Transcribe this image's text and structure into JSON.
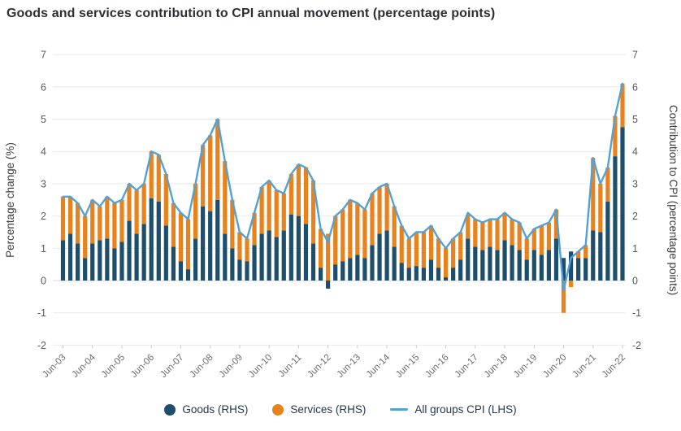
{
  "title": "Goods and services contribution to CPI annual movement (percentage points)",
  "legend": {
    "goods_label": "Goods (RHS)",
    "services_label": "Services (RHS)",
    "cpi_label": "All groups CPI (LHS)"
  },
  "chart_data": {
    "type": "bar",
    "subtype": "stacked-bars-with-line-overlay",
    "title": "Goods and services contribution to CPI annual movement (percentage points)",
    "categories": [
      "Jun-03",
      "Sep-03",
      "Dec-03",
      "Mar-04",
      "Jun-04",
      "Sep-04",
      "Dec-04",
      "Mar-05",
      "Jun-05",
      "Sep-05",
      "Dec-05",
      "Mar-06",
      "Jun-06",
      "Sep-06",
      "Dec-06",
      "Mar-07",
      "Jun-07",
      "Sep-07",
      "Dec-07",
      "Mar-08",
      "Jun-08",
      "Sep-08",
      "Dec-08",
      "Mar-09",
      "Jun-09",
      "Sep-09",
      "Dec-09",
      "Mar-10",
      "Jun-10",
      "Sep-10",
      "Dec-10",
      "Mar-11",
      "Jun-11",
      "Sep-11",
      "Dec-11",
      "Mar-12",
      "Jun-12",
      "Sep-12",
      "Dec-12",
      "Mar-13",
      "Jun-13",
      "Sep-13",
      "Dec-13",
      "Mar-14",
      "Jun-14",
      "Sep-14",
      "Dec-14",
      "Mar-15",
      "Jun-15",
      "Sep-15",
      "Dec-15",
      "Mar-16",
      "Jun-16",
      "Sep-16",
      "Dec-16",
      "Mar-17",
      "Jun-17",
      "Sep-17",
      "Dec-17",
      "Mar-18",
      "Jun-18",
      "Sep-18",
      "Dec-18",
      "Mar-19",
      "Jun-19",
      "Sep-19",
      "Dec-19",
      "Mar-20",
      "Jun-20",
      "Sep-20",
      "Dec-20",
      "Mar-21",
      "Jun-21",
      "Sep-21",
      "Dec-21",
      "Mar-22",
      "Jun-22"
    ],
    "x_tick_labels": [
      "Jun-03",
      "Jun-04",
      "Jun-05",
      "Jun-06",
      "Jun-07",
      "Jun-08",
      "Jun-09",
      "Jun-10",
      "Jun-11",
      "Jun-12",
      "Jun-13",
      "Jun-14",
      "Jun-15",
      "Jun-16",
      "Jun-17",
      "Jun-18",
      "Jun-19",
      "Jun-20",
      "Jun-21",
      "Jun-22"
    ],
    "series": [
      {
        "name": "Goods (RHS)",
        "type": "bar",
        "stack": true,
        "color": "#1d4e6b",
        "values": [
          1.25,
          1.45,
          1.15,
          0.7,
          1.15,
          1.25,
          1.3,
          1.0,
          1.2,
          1.85,
          1.45,
          1.75,
          2.55,
          2.45,
          1.7,
          1.05,
          0.6,
          0.35,
          1.3,
          2.3,
          2.15,
          2.5,
          1.45,
          1.0,
          0.65,
          0.6,
          1.1,
          1.45,
          1.55,
          1.35,
          1.55,
          2.05,
          2.0,
          1.75,
          1.15,
          0.4,
          -0.25,
          0.5,
          0.6,
          0.7,
          0.8,
          0.7,
          1.1,
          1.45,
          1.55,
          1.05,
          0.55,
          0.4,
          0.45,
          0.4,
          0.65,
          0.4,
          0.1,
          0.4,
          0.65,
          1.3,
          1.05,
          0.95,
          1.05,
          0.95,
          1.25,
          1.1,
          0.95,
          0.65,
          0.95,
          0.8,
          0.95,
          1.3,
          0.7,
          0.9,
          0.7,
          0.7,
          1.55,
          1.5,
          2.45,
          3.85,
          4.75
        ]
      },
      {
        "name": "Services (RHS)",
        "type": "bar",
        "stack": true,
        "color": "#e8821d",
        "values": [
          1.35,
          1.15,
          1.25,
          1.3,
          1.35,
          1.05,
          1.3,
          1.4,
          1.3,
          1.15,
          1.35,
          1.25,
          1.45,
          1.45,
          1.6,
          1.35,
          1.5,
          1.55,
          1.7,
          1.9,
          2.35,
          2.5,
          2.25,
          1.5,
          0.85,
          0.7,
          1.0,
          1.45,
          1.55,
          1.45,
          1.15,
          1.25,
          1.6,
          1.75,
          1.95,
          1.2,
          1.45,
          1.5,
          1.6,
          1.8,
          1.6,
          1.5,
          1.6,
          1.45,
          1.45,
          1.25,
          1.15,
          0.9,
          1.05,
          1.1,
          1.05,
          0.9,
          0.9,
          0.9,
          0.85,
          0.75,
          0.85,
          0.85,
          0.85,
          0.95,
          0.85,
          0.8,
          0.85,
          0.65,
          0.65,
          0.9,
          0.85,
          0.9,
          -1.0,
          -0.2,
          0.2,
          0.4,
          2.25,
          1.5,
          1.05,
          1.25,
          1.35
        ]
      },
      {
        "name": "All groups CPI (LHS)",
        "type": "line",
        "color": "#54a1d3",
        "values": [
          2.6,
          2.6,
          2.4,
          2.0,
          2.5,
          2.3,
          2.6,
          2.4,
          2.5,
          3.0,
          2.8,
          3.0,
          4.0,
          3.9,
          3.3,
          2.4,
          2.1,
          1.9,
          3.0,
          4.2,
          4.5,
          5.0,
          3.7,
          2.5,
          1.5,
          1.3,
          2.1,
          2.9,
          3.1,
          2.8,
          2.7,
          3.3,
          3.6,
          3.5,
          3.1,
          1.6,
          1.2,
          2.0,
          2.2,
          2.5,
          2.4,
          2.2,
          2.7,
          2.9,
          3.0,
          2.3,
          1.7,
          1.3,
          1.5,
          1.5,
          1.7,
          1.3,
          1.0,
          1.3,
          1.5,
          2.1,
          1.9,
          1.8,
          1.9,
          1.9,
          2.1,
          1.9,
          1.8,
          1.3,
          1.6,
          1.7,
          1.8,
          2.2,
          -0.3,
          0.7,
          0.9,
          1.1,
          3.8,
          3.0,
          3.5,
          5.1,
          6.1
        ]
      }
    ],
    "left_axis": {
      "label": "Percentage change (%)",
      "min": -2,
      "max": 7,
      "ticks": [
        7,
        6,
        5,
        4,
        3,
        2,
        1,
        0,
        -1,
        -2
      ]
    },
    "right_axis": {
      "label": "Contribution to CPI (percentage points)",
      "min": -2,
      "max": 7,
      "ticks": [
        7,
        6,
        5,
        4,
        3,
        2,
        1,
        0,
        -1,
        -2
      ]
    },
    "grid": true,
    "legend_position": "bottom"
  }
}
